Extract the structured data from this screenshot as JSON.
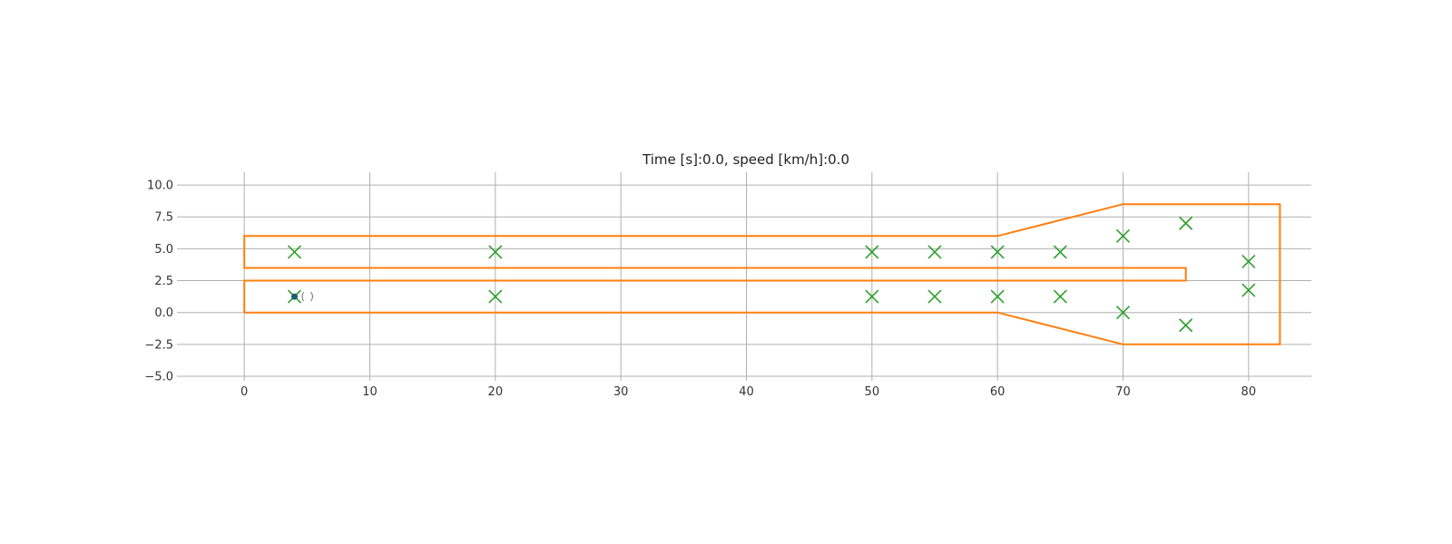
{
  "chart_data": {
    "type": "scatter",
    "title": "Time [s]:0.0, speed [km/h]:0.0",
    "xlabel": "",
    "ylabel": "",
    "xlim": [
      -5,
      85
    ],
    "ylim": [
      -5,
      11
    ],
    "grid": true,
    "x_ticks": [
      0,
      10,
      20,
      30,
      40,
      50,
      60,
      70,
      80
    ],
    "y_ticks": [
      10.0,
      7.5,
      5.0,
      2.5,
      0.0,
      -2.5,
      -5.0
    ],
    "x_tick_labels": [
      "0",
      "10",
      "20",
      "30",
      "40",
      "50",
      "60",
      "70",
      "80"
    ],
    "y_tick_labels": [
      "10.0",
      "7.5",
      "5.0",
      "2.5",
      "0.0",
      "−2.5",
      "−5.0"
    ],
    "colors": {
      "course": "#ff7f0e",
      "cones": "#2ca02c",
      "vehicle": "#1f5f6f"
    },
    "series": [
      {
        "type": "line",
        "points": [
          [
            0,
            0
          ],
          [
            60,
            0
          ],
          [
            70,
            -2.5
          ],
          [
            82.5,
            -2.5
          ],
          [
            82.5,
            8.5
          ],
          [
            70,
            8.5
          ],
          [
            60,
            6
          ],
          [
            0,
            6
          ],
          [
            0,
            3.5
          ],
          [
            75,
            3.5
          ],
          [
            75,
            2.5
          ],
          [
            0,
            2.5
          ],
          [
            0,
            0
          ]
        ]
      },
      {
        "type": "scatter",
        "marker": "x",
        "points": [
          [
            4,
            4.75
          ],
          [
            20,
            4.75
          ],
          [
            50,
            4.75
          ],
          [
            55,
            4.75
          ],
          [
            60,
            4.75
          ],
          [
            65,
            4.75
          ],
          [
            70,
            6.0
          ],
          [
            75,
            7.0
          ],
          [
            80,
            4.0
          ],
          [
            80,
            1.75
          ],
          [
            75,
            -1.0
          ],
          [
            70,
            0.0
          ],
          [
            65,
            1.25
          ],
          [
            60,
            1.25
          ],
          [
            55,
            1.25
          ],
          [
            50,
            1.25
          ],
          [
            20,
            1.25
          ],
          [
            4,
            1.25
          ]
        ]
      },
      {
        "type": "vehicle",
        "position": [
          4,
          1.25
        ]
      }
    ]
  }
}
